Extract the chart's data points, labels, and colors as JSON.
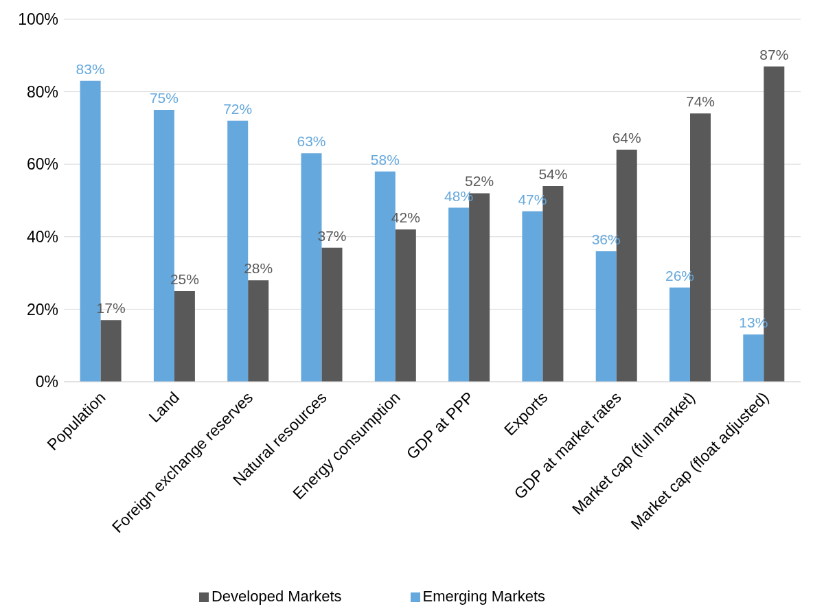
{
  "chart_data": {
    "type": "bar",
    "categories": [
      "Population",
      "Land",
      "Foreign exchange reserves",
      "Natural resources",
      "Energy consumption",
      "GDP at PPP",
      "Exports",
      "GDP at market rates",
      "Market cap (full market)",
      "Market cap (float adjusted)"
    ],
    "series": [
      {
        "name": "Emerging Markets",
        "color": "#65a8dd",
        "values": [
          83,
          75,
          72,
          63,
          58,
          48,
          47,
          36,
          26,
          13
        ],
        "value_labels": [
          "83%",
          "75%",
          "72%",
          "63%",
          "58%",
          "48%",
          "47%",
          "36%",
          "26%",
          "13%"
        ]
      },
      {
        "name": "Developed Markets",
        "color": "#595959",
        "values": [
          17,
          25,
          28,
          37,
          42,
          52,
          54,
          64,
          74,
          87
        ],
        "value_labels": [
          "17%",
          "25%",
          "28%",
          "37%",
          "42%",
          "52%",
          "54%",
          "64%",
          "74%",
          "87%"
        ]
      }
    ],
    "ylim": [
      0,
      100
    ],
    "yticks": [
      {
        "value": 0,
        "label": "0%"
      },
      {
        "value": 20,
        "label": "20%"
      },
      {
        "value": 40,
        "label": "40%"
      },
      {
        "value": 60,
        "label": "60%"
      },
      {
        "value": 80,
        "label": "80%"
      },
      {
        "value": 100,
        "label": "100%"
      }
    ],
    "grid": "y",
    "legend": "bottom"
  }
}
